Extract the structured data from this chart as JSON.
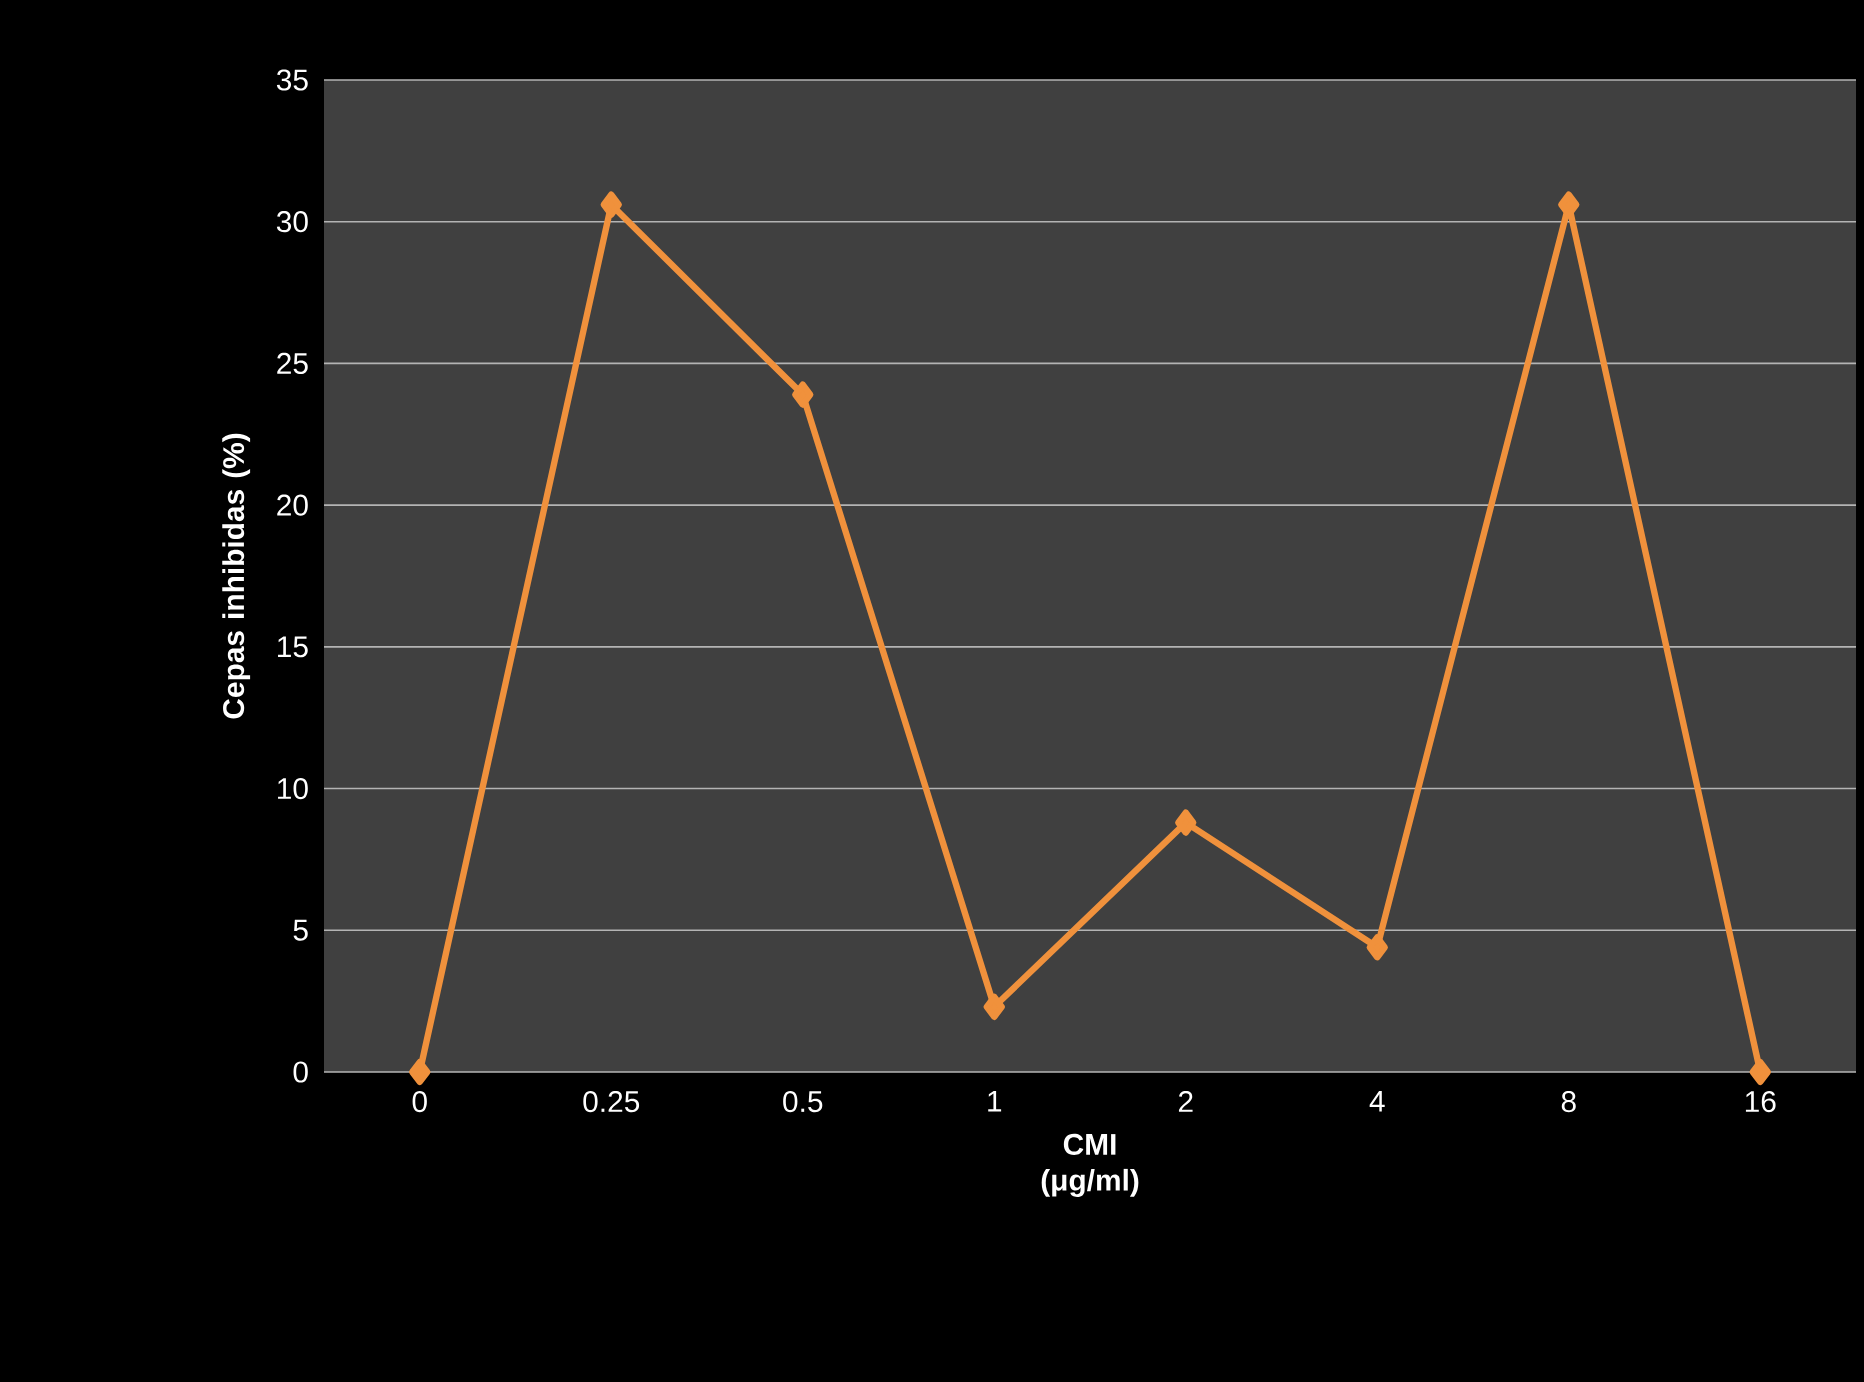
{
  "chart_data": {
    "type": "line",
    "xlabel": "CMI (μg/ml)",
    "ylabel": "Cepas inhibidas (%)",
    "categories": [
      "0",
      "0.25",
      "0.5",
      "1",
      "2",
      "4",
      "8",
      "16"
    ],
    "series": [
      {
        "color": "#f0913c",
        "values": [
          0,
          30.6,
          23.9,
          2.3,
          8.8,
          4.4,
          30.6,
          0
        ]
      }
    ],
    "ylim": [
      0,
      35
    ],
    "yticks": [
      0,
      5,
      10,
      15,
      20,
      25,
      30,
      35
    ],
    "grid": "y",
    "marker": "diamond",
    "line_style": "solid",
    "legend": false
  }
}
